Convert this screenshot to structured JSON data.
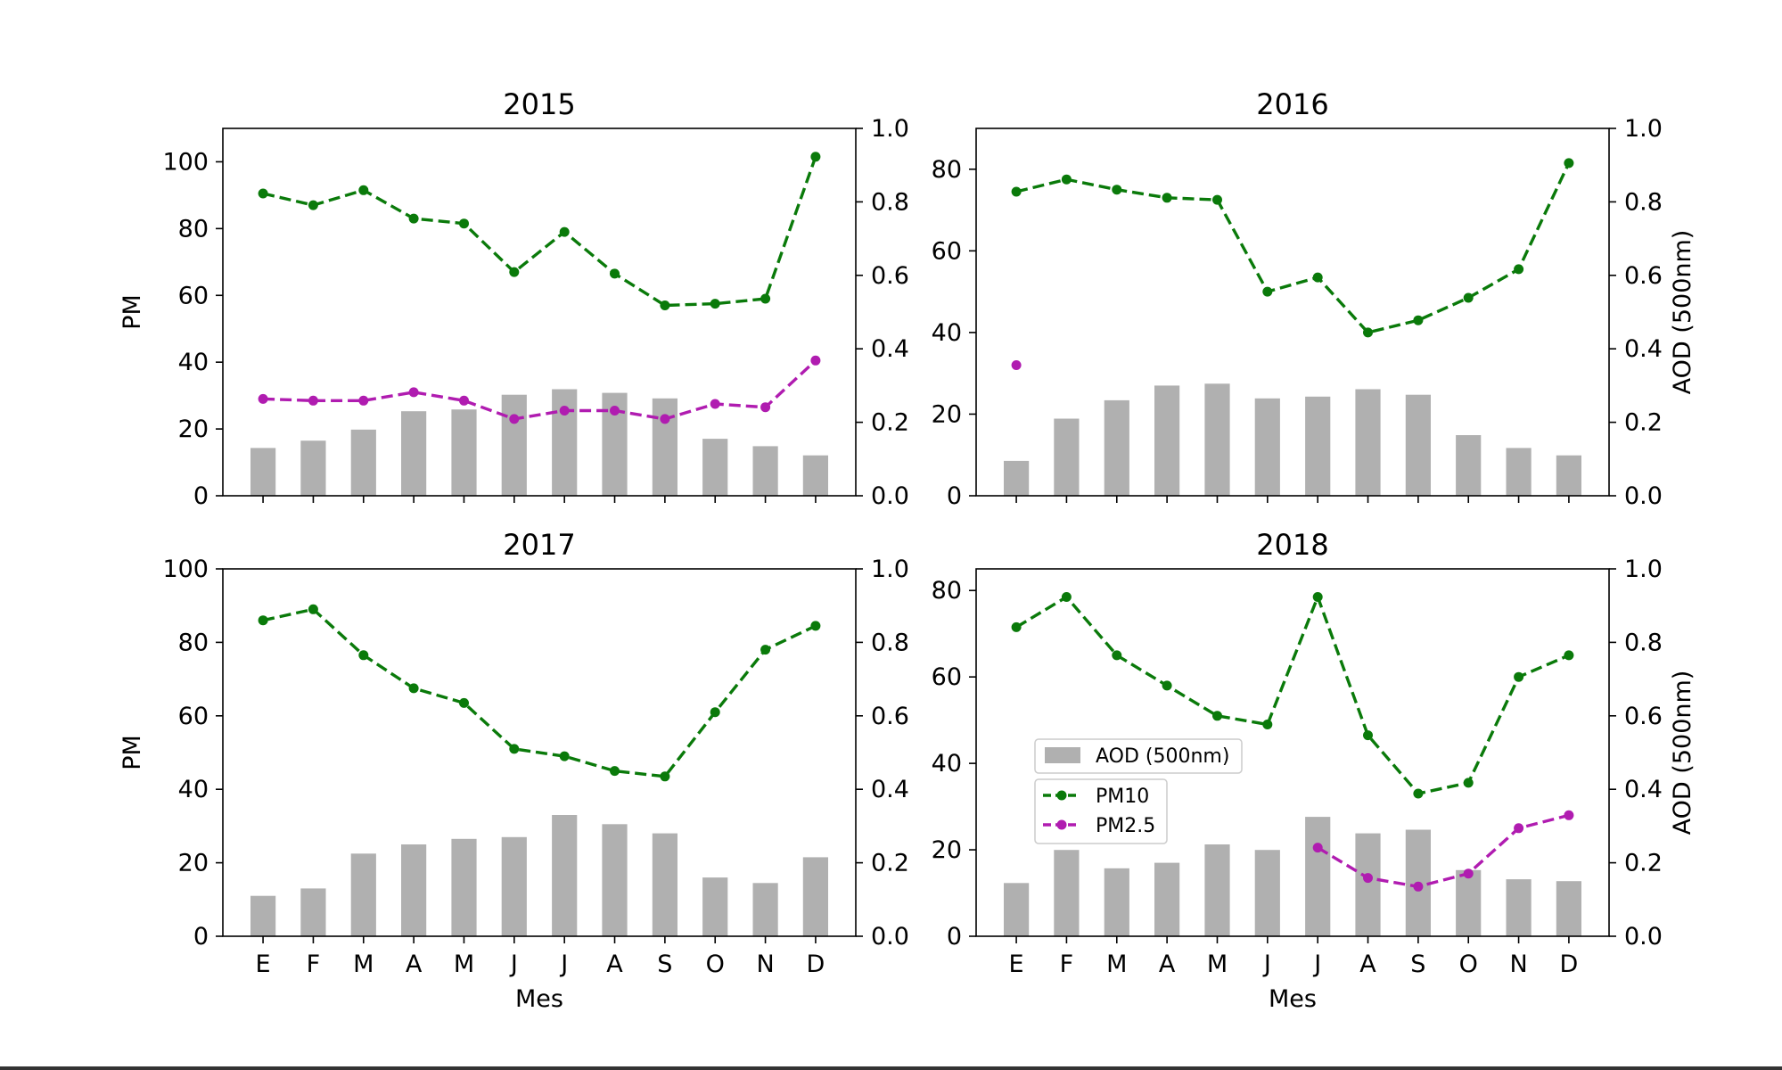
{
  "chart_data": [
    {
      "type": "bar",
      "title": "2015",
      "categories": [
        "E",
        "F",
        "M",
        "A",
        "M",
        "J",
        "J",
        "A",
        "S",
        "O",
        "N",
        "D"
      ],
      "xlabel": "",
      "ylabel": "PM",
      "y2label": "",
      "ylim": [
        0,
        110
      ],
      "yticks": [
        0,
        20,
        40,
        60,
        80,
        100
      ],
      "y2lim": [
        0,
        1.0
      ],
      "y2ticks": [
        "0.0",
        "0.2",
        "0.4",
        "0.6",
        "0.8",
        "1.0"
      ],
      "show_xticklabels": false,
      "series": [
        {
          "name": "AOD (500nm)",
          "type": "bar",
          "axis": "right",
          "color": "#b0b0b0",
          "values": [
            0.13,
            0.15,
            0.18,
            0.23,
            0.235,
            0.275,
            0.29,
            0.28,
            0.265,
            0.155,
            0.135,
            0.11
          ]
        },
        {
          "name": "PM10",
          "type": "line",
          "axis": "left",
          "color": "#0a7a0a",
          "values": [
            90.5,
            87,
            91.5,
            83,
            81.5,
            67,
            79,
            66.5,
            57,
            57.5,
            59,
            101.5
          ]
        },
        {
          "name": "PM2.5",
          "type": "line",
          "axis": "left",
          "color": "#b01cb0",
          "values": [
            29,
            28.5,
            28.5,
            31,
            28.5,
            23,
            25.5,
            25.5,
            23,
            27.5,
            26.5,
            40.5
          ]
        }
      ]
    },
    {
      "type": "bar",
      "title": "2016",
      "categories": [
        "E",
        "F",
        "M",
        "A",
        "M",
        "J",
        "J",
        "A",
        "S",
        "O",
        "N",
        "D"
      ],
      "xlabel": "",
      "ylabel": "",
      "y2label": "AOD (500nm)",
      "ylim": [
        0,
        90
      ],
      "yticks": [
        0,
        20,
        40,
        60,
        80
      ],
      "y2lim": [
        0,
        1.0
      ],
      "y2ticks": [
        "0.0",
        "0.2",
        "0.4",
        "0.6",
        "0.8",
        "1.0"
      ],
      "show_xticklabels": false,
      "series": [
        {
          "name": "AOD (500nm)",
          "type": "bar",
          "axis": "right",
          "color": "#b0b0b0",
          "values": [
            0.095,
            0.21,
            0.26,
            0.3,
            0.305,
            0.265,
            0.27,
            0.29,
            0.275,
            0.165,
            0.13,
            0.11
          ]
        },
        {
          "name": "PM10",
          "type": "line",
          "axis": "left",
          "color": "#0a7a0a",
          "values": [
            74.5,
            77.5,
            75,
            73,
            72.5,
            50,
            53.5,
            40,
            43,
            48.5,
            55.5,
            81.5
          ]
        },
        {
          "name": "PM2.5",
          "type": "line",
          "axis": "left",
          "color": "#b01cb0",
          "values": [
            32,
            null,
            null,
            null,
            null,
            null,
            null,
            null,
            null,
            null,
            null,
            null
          ]
        }
      ]
    },
    {
      "type": "bar",
      "title": "2017",
      "categories": [
        "E",
        "F",
        "M",
        "A",
        "M",
        "J",
        "J",
        "A",
        "S",
        "O",
        "N",
        "D"
      ],
      "xlabel": "Mes",
      "ylabel": "PM",
      "y2label": "",
      "ylim": [
        0,
        100
      ],
      "yticks": [
        0,
        20,
        40,
        60,
        80,
        100
      ],
      "y2lim": [
        0,
        1.0
      ],
      "y2ticks": [
        "0.0",
        "0.2",
        "0.4",
        "0.6",
        "0.8",
        "1.0"
      ],
      "show_xticklabels": true,
      "series": [
        {
          "name": "AOD (500nm)",
          "type": "bar",
          "axis": "right",
          "color": "#b0b0b0",
          "values": [
            0.11,
            0.13,
            0.225,
            0.25,
            0.265,
            0.27,
            0.33,
            0.305,
            0.28,
            0.16,
            0.145,
            0.215
          ]
        },
        {
          "name": "PM10",
          "type": "line",
          "axis": "left",
          "color": "#0a7a0a",
          "values": [
            86,
            89,
            76.5,
            67.5,
            63.5,
            51,
            49,
            45,
            43.5,
            61,
            78,
            84.5
          ]
        }
      ]
    },
    {
      "type": "bar",
      "title": "2018",
      "categories": [
        "E",
        "F",
        "M",
        "A",
        "M",
        "J",
        "J",
        "A",
        "S",
        "O",
        "N",
        "D"
      ],
      "xlabel": "Mes",
      "ylabel": "",
      "y2label": "AOD (500nm)",
      "ylim": [
        0,
        85
      ],
      "yticks": [
        0,
        20,
        40,
        60,
        80
      ],
      "y2lim": [
        0,
        1.0
      ],
      "y2ticks": [
        "0.0",
        "0.2",
        "0.4",
        "0.6",
        "0.8",
        "1.0"
      ],
      "show_xticklabels": true,
      "legend": {
        "bars": [
          {
            "label": "AOD (500nm)",
            "color": "#b0b0b0"
          }
        ],
        "lines": [
          {
            "label": "PM10",
            "color": "#0a7a0a"
          },
          {
            "label": "PM2.5",
            "color": "#b01cb0"
          }
        ]
      },
      "series": [
        {
          "name": "AOD (500nm)",
          "type": "bar",
          "axis": "right",
          "color": "#b0b0b0",
          "values": [
            0.145,
            0.235,
            0.185,
            0.2,
            0.25,
            0.235,
            0.325,
            0.28,
            0.29,
            0.18,
            0.155,
            0.15
          ]
        },
        {
          "name": "PM10",
          "type": "line",
          "axis": "left",
          "color": "#0a7a0a",
          "values": [
            71.5,
            78.5,
            65,
            58,
            51,
            49,
            78.5,
            46.5,
            33,
            35.5,
            60,
            65
          ]
        },
        {
          "name": "PM2.5",
          "type": "line",
          "axis": "left",
          "color": "#b01cb0",
          "values": [
            null,
            null,
            null,
            null,
            null,
            null,
            20.5,
            13.5,
            11.5,
            14.5,
            25,
            28
          ]
        }
      ]
    }
  ]
}
